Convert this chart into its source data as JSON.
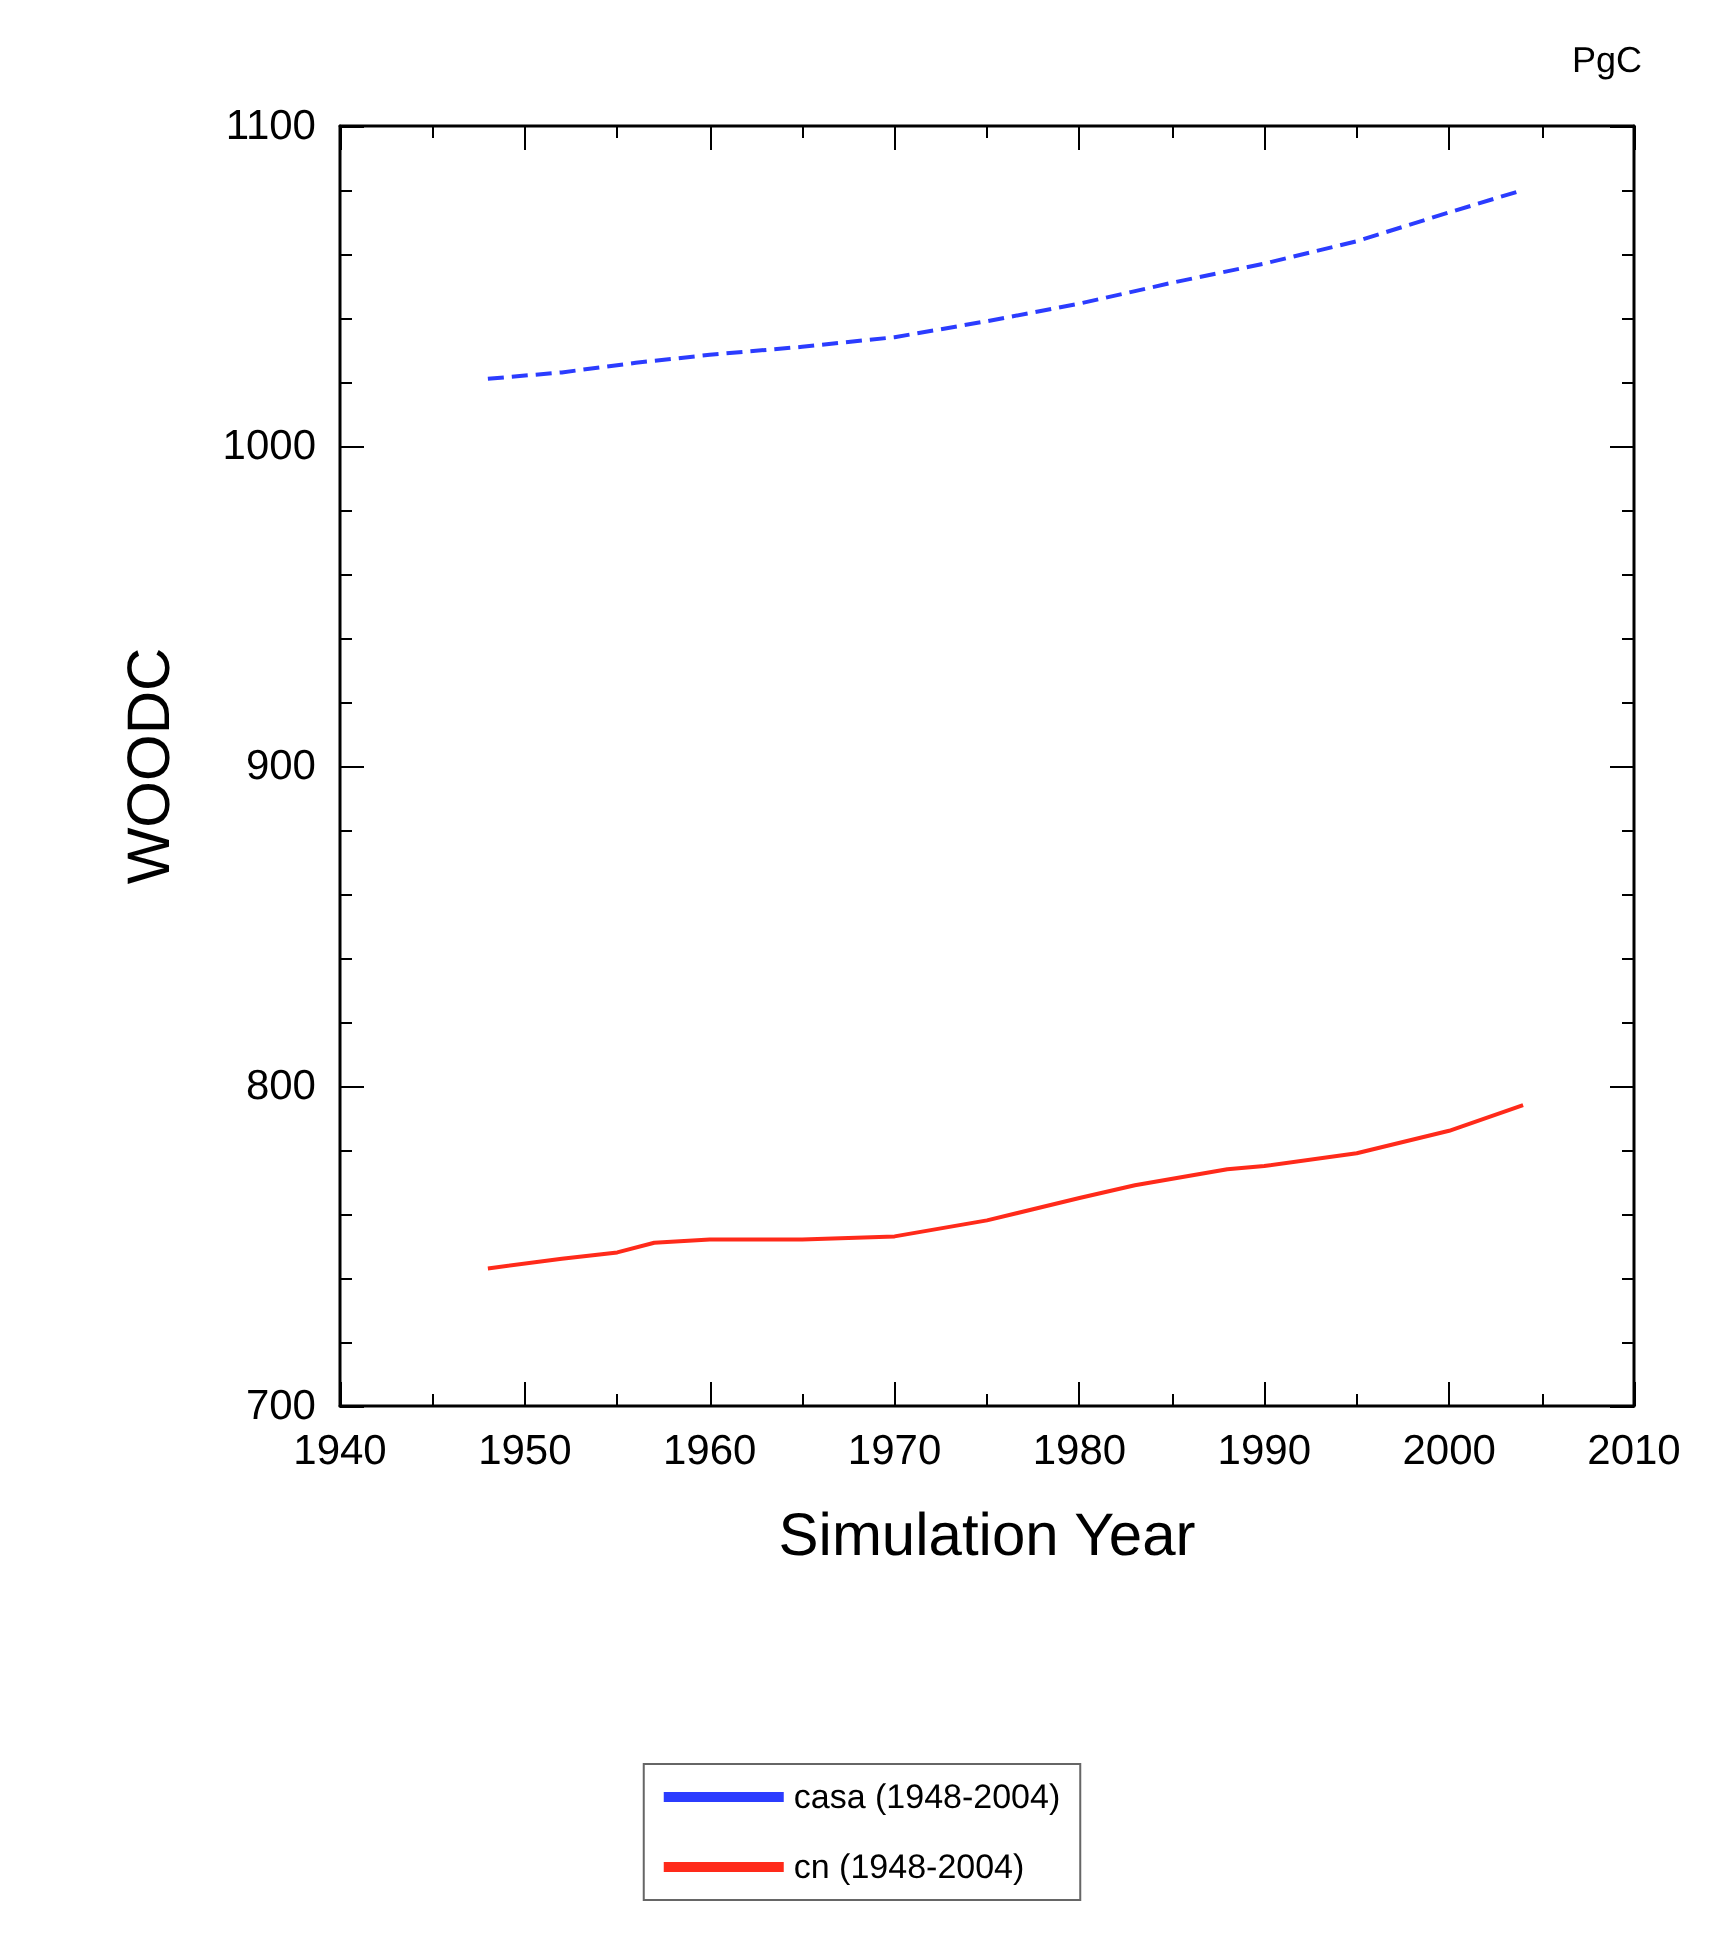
{
  "chart_data": {
    "type": "line",
    "subtitle": "PgC",
    "xlabel": "Simulation Year",
    "ylabel": "WOODC",
    "xlim": [
      1940,
      2010
    ],
    "xticks": [
      1940,
      1950,
      1960,
      1970,
      1980,
      1990,
      2000,
      2010
    ],
    "ylim": [
      700,
      1100
    ],
    "yticks": [
      700,
      800,
      900,
      1000,
      1100
    ],
    "grid": false,
    "legend": "bottom",
    "marker": "none",
    "series": [
      {
        "name": "casa (1948-2004)",
        "color": "#2b3cff",
        "line_style": "dashed",
        "x": [
          1948,
          1952,
          1956,
          1960,
          1965,
          1970,
          1975,
          1980,
          1985,
          1990,
          1995,
          2000,
          2004
        ],
        "values": [
          1021,
          1023,
          1026,
          1028.5,
          1031,
          1034,
          1039,
          1044.5,
          1051,
          1057,
          1064,
          1073,
          1080
        ]
      },
      {
        "name": "cn (1948-2004)",
        "color": "#ff2a1a",
        "line_style": "solid",
        "x": [
          1948,
          1952,
          1955,
          1957,
          1960,
          1965,
          1970,
          1975,
          1980,
          1983,
          1988,
          1990,
          1995,
          2000,
          2004
        ],
        "values": [
          743,
          746,
          748,
          751,
          752,
          752,
          753,
          758,
          765,
          769,
          774,
          775,
          779,
          786,
          794
        ]
      }
    ]
  }
}
